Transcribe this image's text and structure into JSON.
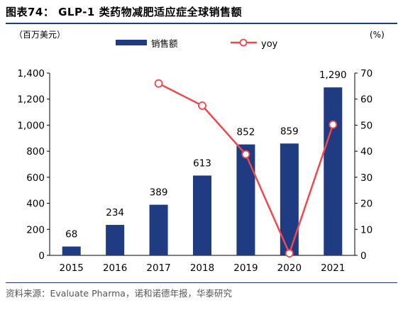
{
  "figure": {
    "title": "图表74：  GLP-1 类药物减肥适应症全球销售额",
    "source": "资料来源：Evaluate Pharma，诺和诺德年报，华泰研究"
  },
  "chart_data": {
    "type": "bar",
    "title": "",
    "categories": [
      "2015",
      "2016",
      "2017",
      "2018",
      "2019",
      "2020",
      "2021"
    ],
    "series": [
      {
        "name": "销售额",
        "type": "bar",
        "axis": "left",
        "color": "#1f3b82",
        "values": [
          68,
          234,
          389,
          613,
          852,
          859,
          1290
        ],
        "data_labels": [
          "68",
          "234",
          "389",
          "613",
          "852",
          "859",
          "1,290"
        ]
      },
      {
        "name": "yoy",
        "type": "line",
        "axis": "right",
        "color": "#f0484f",
        "values": [
          null,
          null,
          66,
          57.5,
          38.8,
          0.8,
          50.2
        ]
      }
    ],
    "y_left": {
      "unit": "（百万美元）",
      "ylim": [
        0,
        1400
      ],
      "ticks": [
        "0",
        "200",
        "400",
        "600",
        "800",
        "1,000",
        "1,200",
        "1,400"
      ]
    },
    "y_right": {
      "unit": "(%)",
      "ylim": [
        0,
        70
      ],
      "ticks": [
        "0",
        "10",
        "20",
        "30",
        "40",
        "50",
        "60",
        "70"
      ]
    },
    "legend": {
      "position": "top-center",
      "bar_label": "销售额",
      "line_label": "yoy"
    },
    "grid": false
  }
}
